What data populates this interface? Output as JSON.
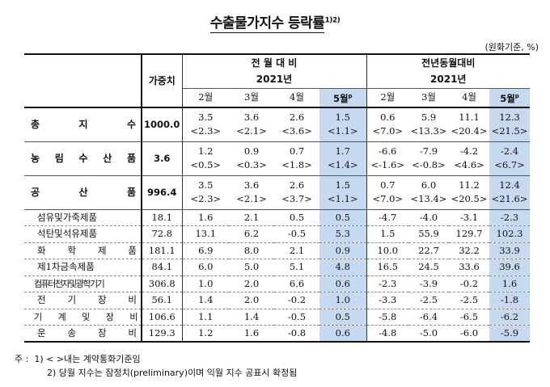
{
  "title": "수출물가지수 등락률",
  "title_sup": "1)2)",
  "unit": "(원화기준, %)",
  "headers": {
    "weight": "가중치",
    "group1": "전 월 대 비",
    "group2": "전년동월대비",
    "year1": "2021년",
    "year2": "2021년",
    "months1": [
      "2월",
      "3월",
      "4월",
      "5월"
    ],
    "months2": [
      "2월",
      "3월",
      "4월",
      "5월"
    ],
    "p": "p"
  },
  "rows": [
    {
      "label": "총 지 수",
      "weight": "1000.0",
      "mom": [
        "3.5",
        "3.6",
        "2.6",
        "1.5"
      ],
      "mom_sub": [
        "<2.3>",
        "<2.1>",
        "<3.6>",
        "<1.1>"
      ],
      "yoy": [
        "0.6",
        "5.9",
        "11.1",
        "12.3"
      ],
      "yoy_sub": [
        "<7.0>",
        "<13.3>",
        "<20.4>",
        "<21.5>"
      ]
    },
    {
      "label": "농 림 수 산 품",
      "weight": "3.6",
      "mom": [
        "1.2",
        "0.9",
        "0.7",
        "1.7"
      ],
      "mom_sub": [
        "<0.5>",
        "<0.3>",
        "<1.8>",
        "<1.4>"
      ],
      "yoy": [
        "-6.6",
        "-7.9",
        "-4.2",
        "-2.4"
      ],
      "yoy_sub": [
        "<-1.6>",
        "<-0.8>",
        "<4.6>",
        "<6.7>"
      ]
    },
    {
      "label": "공 산 품",
      "weight": "996.4",
      "mom": [
        "3.5",
        "3.6",
        "2.6",
        "1.5"
      ],
      "mom_sub": [
        "<2.3>",
        "<2.1>",
        "<3.7>",
        "<1.1>"
      ],
      "yoy": [
        "0.7",
        "6.0",
        "11.2",
        "12.4"
      ],
      "yoy_sub": [
        "<7.0>",
        "<13.4>",
        "<20.5>",
        "<21.6>"
      ]
    }
  ],
  "subrows": [
    {
      "label": "섬유및가죽제품",
      "weight": "18.1",
      "mom": [
        "1.6",
        "2.1",
        "0.5",
        "0.5"
      ],
      "yoy": [
        "-4.7",
        "-4.0",
        "-3.1",
        "-2.3"
      ]
    },
    {
      "label": "석탄및석유제품",
      "weight": "72.8",
      "mom": [
        "13.1",
        "6.2",
        "-0.5",
        "5.3"
      ],
      "yoy": [
        "1.5",
        "55.9",
        "129.7",
        "102.3"
      ]
    },
    {
      "label": "화 학 제 품",
      "weight": "181.1",
      "mom": [
        "6.9",
        "8.0",
        "2.1",
        "0.9"
      ],
      "yoy": [
        "10.0",
        "22.7",
        "32.2",
        "33.9"
      ]
    },
    {
      "label": "제1차금속제품",
      "weight": "84.1",
      "mom": [
        "6.0",
        "5.0",
        "5.1",
        "4.8"
      ],
      "yoy": [
        "16.5",
        "24.5",
        "33.6",
        "39.6"
      ]
    },
    {
      "label": "컴퓨터전자및광학기기",
      "weight": "306.8",
      "mom": [
        "1.0",
        "2.0",
        "6.6",
        "0.6"
      ],
      "yoy": [
        "-2.3",
        "-3.9",
        "-0.2",
        "1.6"
      ]
    },
    {
      "label": "전 기 장 비",
      "weight": "56.1",
      "mom": [
        "1.4",
        "2.0",
        "-0.2",
        "1.0"
      ],
      "yoy": [
        "-3.3",
        "-2.5",
        "-2.5",
        "-1.8"
      ]
    },
    {
      "label": "기 계 및 장 비",
      "weight": "106.6",
      "mom": [
        "1.1",
        "1.4",
        "-0.5",
        "0.5"
      ],
      "yoy": [
        "-5.8",
        "-6.4",
        "-6.5",
        "-6.2"
      ]
    },
    {
      "label": "운 송 장 비",
      "weight": "129.3",
      "mom": [
        "1.2",
        "1.6",
        "-0.8",
        "0.6"
      ],
      "yoy": [
        "-4.8",
        "-5.0",
        "-6.0",
        "-5.9"
      ]
    }
  ],
  "notes": {
    "prefix": "주 :",
    "note1": "1) < >내는 계약통화기준임",
    "note2": "2) 당월 지수는 잠정치(preliminary)이며 익월 지수 공표시 확정됨"
  },
  "colors": {
    "highlight": "#c6d9f1"
  }
}
